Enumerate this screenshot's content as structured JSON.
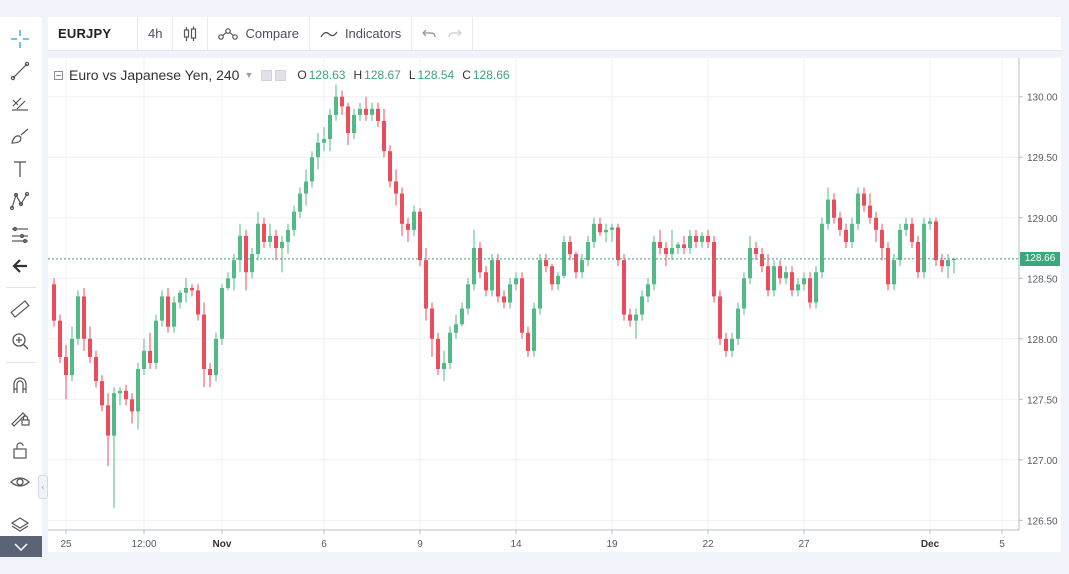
{
  "toolbar": {
    "symbol": "EURJPY",
    "interval": "4h",
    "compare_label": "Compare",
    "indicators_label": "Indicators"
  },
  "legend": {
    "title": "Euro vs Japanese Yen, 240",
    "open_key": "O",
    "open": "128.63",
    "high_key": "H",
    "high": "128.67",
    "low_key": "L",
    "low": "128.54",
    "close_key": "C",
    "close": "128.66"
  },
  "price_tag": "128.66",
  "colors": {
    "up": "#53b987",
    "down": "#eb4d5c",
    "grid": "#eef0f4",
    "axis_text": "#555c67",
    "last_line": "#3aa77c"
  },
  "left_tools": [
    "crosshair-icon",
    "trend-line-icon",
    "pitchfork-icon",
    "brush-icon",
    "text-icon",
    "pattern-icon",
    "prediction-icon",
    "back-arrow-icon",
    "ruler-icon",
    "zoom-in-icon",
    "magnet-icon",
    "lock-drawing-icon",
    "unlock-icon",
    "eye-icon",
    "layers-icon"
  ],
  "chart_data": {
    "type": "candlestick",
    "title": "Euro vs Japanese Yen, 240",
    "ylim": [
      126.42,
      130.32
    ],
    "y_ticks": [
      "130.00",
      "129.50",
      "129.00",
      "128.50",
      "128.00",
      "127.50",
      "127.00",
      "126.50"
    ],
    "x_ticks": [
      {
        "label": "25",
        "index": 2
      },
      {
        "label": "12:00",
        "index": 15
      },
      {
        "label": "Nov",
        "index": 28
      },
      {
        "label": "6",
        "index": 45
      },
      {
        "label": "9",
        "index": 61
      },
      {
        "label": "14",
        "index": 77
      },
      {
        "label": "19",
        "index": 93
      },
      {
        "label": "22",
        "index": 109
      },
      {
        "label": "27",
        "index": 125
      },
      {
        "label": "Dec",
        "index": 146
      },
      {
        "label": "5",
        "index": 158
      }
    ],
    "last_price": 128.66,
    "candles": [
      [
        128.45,
        128.5,
        128.1,
        128.15
      ],
      [
        128.15,
        128.2,
        127.8,
        127.85
      ],
      [
        127.85,
        127.95,
        127.5,
        127.7
      ],
      [
        127.7,
        128.1,
        127.65,
        128.0
      ],
      [
        128.0,
        128.4,
        127.95,
        128.35
      ],
      [
        128.35,
        128.42,
        127.9,
        128.0
      ],
      [
        128.0,
        128.1,
        127.8,
        127.85
      ],
      [
        127.85,
        127.9,
        127.6,
        127.65
      ],
      [
        127.65,
        127.7,
        127.4,
        127.45
      ],
      [
        127.45,
        127.55,
        126.95,
        127.2
      ],
      [
        127.2,
        127.6,
        126.6,
        127.55
      ],
      [
        127.55,
        127.6,
        127.45,
        127.57
      ],
      [
        127.57,
        127.62,
        127.45,
        127.5
      ],
      [
        127.5,
        127.55,
        127.3,
        127.4
      ],
      [
        127.4,
        127.8,
        127.25,
        127.75
      ],
      [
        127.75,
        128.0,
        127.7,
        127.9
      ],
      [
        127.9,
        128.05,
        127.75,
        127.8
      ],
      [
        127.8,
        128.2,
        127.75,
        128.15
      ],
      [
        128.15,
        128.4,
        128.1,
        128.35
      ],
      [
        128.35,
        128.42,
        128.05,
        128.1
      ],
      [
        128.1,
        128.35,
        128.05,
        128.3
      ],
      [
        128.3,
        128.4,
        128.25,
        128.38
      ],
      [
        128.38,
        128.5,
        128.3,
        128.42
      ],
      [
        128.42,
        128.45,
        128.35,
        128.4
      ],
      [
        128.4,
        128.45,
        128.15,
        128.2
      ],
      [
        128.2,
        128.3,
        127.6,
        127.75
      ],
      [
        127.75,
        127.8,
        127.6,
        127.7
      ],
      [
        127.7,
        128.05,
        127.65,
        128.0
      ],
      [
        128.0,
        128.45,
        127.95,
        128.42
      ],
      [
        128.42,
        128.55,
        128.4,
        128.5
      ],
      [
        128.5,
        128.7,
        128.4,
        128.65
      ],
      [
        128.65,
        128.95,
        128.55,
        128.85
      ],
      [
        128.85,
        128.9,
        128.4,
        128.55
      ],
      [
        128.55,
        128.75,
        128.5,
        128.7
      ],
      [
        128.7,
        129.05,
        128.65,
        128.95
      ],
      [
        128.95,
        129.0,
        128.75,
        128.8
      ],
      [
        128.8,
        128.95,
        128.75,
        128.85
      ],
      [
        128.85,
        128.9,
        128.65,
        128.75
      ],
      [
        128.75,
        128.85,
        128.55,
        128.8
      ],
      [
        128.8,
        128.95,
        128.7,
        128.9
      ],
      [
        128.9,
        129.1,
        128.85,
        129.05
      ],
      [
        129.05,
        129.25,
        129.0,
        129.2
      ],
      [
        129.2,
        129.4,
        129.1,
        129.3
      ],
      [
        129.3,
        129.55,
        129.25,
        129.5
      ],
      [
        129.5,
        129.7,
        129.4,
        129.62
      ],
      [
        129.62,
        129.75,
        129.55,
        129.65
      ],
      [
        129.65,
        129.9,
        129.55,
        129.85
      ],
      [
        129.85,
        130.1,
        129.8,
        130.0
      ],
      [
        130.0,
        130.05,
        129.85,
        129.92
      ],
      [
        129.92,
        129.95,
        129.6,
        129.7
      ],
      [
        129.7,
        129.9,
        129.65,
        129.85
      ],
      [
        129.85,
        129.95,
        129.8,
        129.9
      ],
      [
        129.9,
        130.0,
        129.8,
        129.85
      ],
      [
        129.85,
        129.95,
        129.8,
        129.9
      ],
      [
        129.9,
        129.95,
        129.75,
        129.8
      ],
      [
        129.8,
        129.9,
        129.5,
        129.55
      ],
      [
        129.55,
        129.6,
        129.25,
        129.3
      ],
      [
        129.3,
        129.4,
        129.1,
        129.2
      ],
      [
        129.2,
        129.25,
        128.85,
        128.95
      ],
      [
        128.95,
        129.0,
        128.8,
        128.9
      ],
      [
        128.9,
        129.1,
        128.85,
        129.05
      ],
      [
        129.05,
        129.08,
        128.6,
        128.65
      ],
      [
        128.65,
        128.75,
        128.15,
        128.25
      ],
      [
        128.25,
        128.3,
        127.85,
        128.0
      ],
      [
        128.0,
        128.05,
        127.7,
        127.75
      ],
      [
        127.75,
        127.9,
        127.65,
        127.8
      ],
      [
        127.8,
        128.1,
        127.75,
        128.05
      ],
      [
        128.05,
        128.2,
        128.0,
        128.12
      ],
      [
        128.12,
        128.3,
        128.1,
        128.25
      ],
      [
        128.25,
        128.5,
        128.2,
        128.45
      ],
      [
        128.45,
        128.9,
        128.4,
        128.75
      ],
      [
        128.75,
        128.8,
        128.5,
        128.55
      ],
      [
        128.55,
        128.6,
        128.35,
        128.4
      ],
      [
        128.4,
        128.7,
        128.35,
        128.65
      ],
      [
        128.65,
        128.7,
        128.3,
        128.35
      ],
      [
        128.35,
        128.4,
        128.25,
        128.3
      ],
      [
        128.3,
        128.5,
        128.25,
        128.45
      ],
      [
        128.45,
        128.55,
        128.4,
        128.5
      ],
      [
        128.5,
        128.55,
        128.0,
        128.05
      ],
      [
        128.05,
        128.1,
        127.85,
        127.9
      ],
      [
        127.9,
        128.3,
        127.85,
        128.25
      ],
      [
        128.25,
        128.7,
        128.2,
        128.65
      ],
      [
        128.65,
        128.7,
        128.55,
        128.6
      ],
      [
        128.6,
        128.62,
        128.4,
        128.45
      ],
      [
        128.45,
        128.55,
        128.4,
        128.52
      ],
      [
        128.52,
        128.85,
        128.5,
        128.8
      ],
      [
        128.8,
        128.85,
        128.65,
        128.7
      ],
      [
        128.7,
        128.72,
        128.5,
        128.55
      ],
      [
        128.55,
        128.7,
        128.5,
        128.65
      ],
      [
        128.65,
        128.85,
        128.6,
        128.8
      ],
      [
        128.8,
        129.0,
        128.75,
        128.95
      ],
      [
        128.95,
        129.0,
        128.85,
        128.88
      ],
      [
        128.88,
        128.95,
        128.8,
        128.9
      ],
      [
        128.9,
        128.95,
        128.8,
        128.92
      ],
      [
        128.92,
        128.95,
        128.6,
        128.65
      ],
      [
        128.65,
        128.7,
        128.15,
        128.2
      ],
      [
        128.2,
        128.25,
        128.1,
        128.15
      ],
      [
        128.15,
        128.25,
        128.0,
        128.2
      ],
      [
        128.2,
        128.4,
        128.15,
        128.35
      ],
      [
        128.35,
        128.5,
        128.3,
        128.45
      ],
      [
        128.45,
        128.85,
        128.4,
        128.8
      ],
      [
        128.8,
        128.9,
        128.7,
        128.75
      ],
      [
        128.75,
        128.8,
        128.6,
        128.7
      ],
      [
        128.7,
        128.9,
        128.65,
        128.75
      ],
      [
        128.75,
        128.8,
        128.7,
        128.78
      ],
      [
        128.78,
        128.85,
        128.7,
        128.75
      ],
      [
        128.75,
        128.9,
        128.7,
        128.85
      ],
      [
        128.85,
        128.9,
        128.75,
        128.8
      ],
      [
        128.8,
        128.88,
        128.75,
        128.85
      ],
      [
        128.85,
        128.9,
        128.75,
        128.8
      ],
      [
        128.8,
        128.85,
        128.3,
        128.35
      ],
      [
        128.35,
        128.4,
        127.95,
        128.0
      ],
      [
        128.0,
        128.05,
        127.85,
        127.9
      ],
      [
        127.9,
        128.05,
        127.85,
        128.0
      ],
      [
        128.0,
        128.3,
        127.95,
        128.25
      ],
      [
        128.25,
        128.55,
        128.2,
        128.5
      ],
      [
        128.5,
        128.85,
        128.45,
        128.75
      ],
      [
        128.75,
        128.8,
        128.65,
        128.7
      ],
      [
        128.7,
        128.75,
        128.55,
        128.6
      ],
      [
        128.6,
        128.7,
        128.35,
        128.4
      ],
      [
        128.4,
        128.65,
        128.35,
        128.6
      ],
      [
        128.6,
        128.65,
        128.45,
        128.5
      ],
      [
        128.5,
        128.6,
        128.45,
        128.55
      ],
      [
        128.55,
        128.6,
        128.35,
        128.4
      ],
      [
        128.4,
        128.5,
        128.35,
        128.45
      ],
      [
        128.45,
        128.55,
        128.4,
        128.5
      ],
      [
        128.5,
        128.55,
        128.25,
        128.3
      ],
      [
        128.3,
        128.6,
        128.25,
        128.55
      ],
      [
        128.55,
        129.0,
        128.5,
        128.95
      ],
      [
        128.95,
        129.25,
        128.9,
        129.15
      ],
      [
        129.15,
        129.2,
        128.95,
        129.0
      ],
      [
        129.0,
        129.05,
        128.85,
        128.9
      ],
      [
        128.9,
        128.95,
        128.75,
        128.8
      ],
      [
        128.8,
        129.0,
        128.75,
        128.95
      ],
      [
        128.95,
        129.25,
        128.9,
        129.2
      ],
      [
        129.2,
        129.25,
        129.05,
        129.1
      ],
      [
        129.1,
        129.2,
        128.95,
        129.0
      ],
      [
        129.0,
        129.05,
        128.8,
        128.9
      ],
      [
        128.9,
        128.95,
        128.65,
        128.75
      ],
      [
        128.75,
        128.8,
        128.4,
        128.45
      ],
      [
        128.45,
        128.7,
        128.4,
        128.65
      ],
      [
        128.65,
        128.95,
        128.6,
        128.9
      ],
      [
        128.9,
        129.0,
        128.85,
        128.95
      ],
      [
        128.95,
        129.0,
        128.75,
        128.8
      ],
      [
        128.8,
        128.85,
        128.5,
        128.55
      ],
      [
        128.55,
        129.0,
        128.5,
        128.95
      ],
      [
        128.95,
        129.0,
        128.9,
        128.97
      ],
      [
        128.97,
        129.0,
        128.6,
        128.65
      ],
      [
        128.65,
        128.7,
        128.55,
        128.6
      ],
      [
        128.6,
        128.7,
        128.5,
        128.65
      ],
      [
        128.65,
        128.67,
        128.54,
        128.66
      ]
    ]
  }
}
